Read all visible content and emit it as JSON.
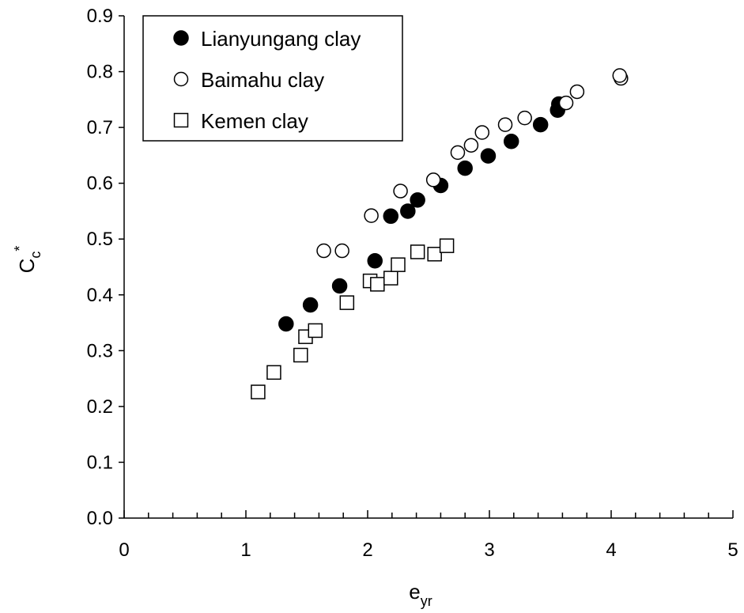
{
  "chart_data": {
    "type": "scatter",
    "title": "",
    "xlabel": {
      "main": "e",
      "sub": "yr"
    },
    "ylabel": {
      "main": "C",
      "sub": "c",
      "sup": "*"
    },
    "xlim": [
      0,
      5
    ],
    "ylim": [
      0.0,
      0.9
    ],
    "x_major_ticks": [
      0,
      1,
      2,
      3,
      4,
      5
    ],
    "x_minor_step": 0.2,
    "y_major_ticks": [
      0.0,
      0.1,
      0.2,
      0.3,
      0.4,
      0.5,
      0.6,
      0.7,
      0.8,
      0.9
    ],
    "y_tick_decimals": 1,
    "grid": false,
    "legend_position": "top-left",
    "series": [
      {
        "name": "Lianyungang clay",
        "marker": "filled-circle",
        "color": "#000000",
        "points": [
          [
            1.33,
            0.348
          ],
          [
            1.53,
            0.382
          ],
          [
            1.77,
            0.416
          ],
          [
            2.06,
            0.461
          ],
          [
            2.19,
            0.541
          ],
          [
            2.33,
            0.55
          ],
          [
            2.41,
            0.57
          ],
          [
            2.6,
            0.596
          ],
          [
            2.8,
            0.627
          ],
          [
            2.99,
            0.649
          ],
          [
            3.18,
            0.675
          ],
          [
            3.42,
            0.705
          ],
          [
            3.56,
            0.731
          ],
          [
            3.57,
            0.742
          ]
        ]
      },
      {
        "name": "Baimahu clay",
        "marker": "open-circle",
        "color": "#000000",
        "points": [
          [
            1.64,
            0.479
          ],
          [
            1.79,
            0.479
          ],
          [
            2.03,
            0.542
          ],
          [
            2.27,
            0.586
          ],
          [
            2.54,
            0.606
          ],
          [
            2.74,
            0.655
          ],
          [
            2.85,
            0.668
          ],
          [
            2.94,
            0.691
          ],
          [
            3.13,
            0.705
          ],
          [
            3.29,
            0.717
          ],
          [
            3.63,
            0.744
          ],
          [
            3.72,
            0.764
          ],
          [
            4.08,
            0.788
          ],
          [
            4.07,
            0.793
          ]
        ]
      },
      {
        "name": "Kemen clay",
        "marker": "open-square",
        "color": "#000000",
        "points": [
          [
            1.1,
            0.226
          ],
          [
            1.23,
            0.261
          ],
          [
            1.45,
            0.292
          ],
          [
            1.49,
            0.325
          ],
          [
            1.57,
            0.336
          ],
          [
            1.83,
            0.386
          ],
          [
            2.02,
            0.425
          ],
          [
            2.08,
            0.419
          ],
          [
            2.19,
            0.43
          ],
          [
            2.25,
            0.454
          ],
          [
            2.41,
            0.477
          ],
          [
            2.55,
            0.473
          ],
          [
            2.65,
            0.488
          ]
        ]
      }
    ]
  }
}
